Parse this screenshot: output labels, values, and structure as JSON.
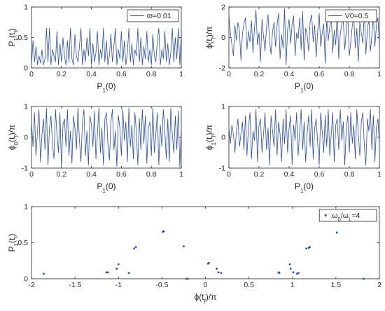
{
  "colors": {
    "series": "#2c4fa3",
    "axis": "#262626"
  },
  "chart_data": [
    {
      "type": "line",
      "xlabel": "P_1(0)",
      "ylabel": "P_1(t_f)",
      "xlim": [
        0,
        1
      ],
      "ylim": [
        0,
        1
      ],
      "xticks": [
        "0",
        "0.2",
        "0.4",
        "0.6",
        "0.8",
        "1"
      ],
      "yticks": [
        "0",
        "0.5",
        "1"
      ],
      "legend": {
        "position": "top-right",
        "entries": [
          "ϖ=0.01"
        ]
      },
      "series": [
        {
          "name": "ϖ=0.01",
          "x": [
            0,
            0.01,
            0.02,
            0.03,
            0.04,
            0.05,
            0.06,
            0.07,
            0.08,
            0.09,
            0.1,
            0.11,
            0.12,
            0.13,
            0.14,
            0.15,
            0.16,
            0.17,
            0.18,
            0.19,
            0.2,
            0.21,
            0.22,
            0.23,
            0.24,
            0.25,
            0.26,
            0.27,
            0.28,
            0.29,
            0.3,
            0.31,
            0.32,
            0.33,
            0.34,
            0.35,
            0.36,
            0.37,
            0.38,
            0.39,
            0.4,
            0.41,
            0.42,
            0.43,
            0.44,
            0.45,
            0.46,
            0.47,
            0.48,
            0.49,
            0.5,
            0.51,
            0.52,
            0.53,
            0.54,
            0.55,
            0.56,
            0.57,
            0.58,
            0.59,
            0.6,
            0.61,
            0.62,
            0.63,
            0.64,
            0.65,
            0.66,
            0.67,
            0.68,
            0.69,
            0.7,
            0.71,
            0.72,
            0.73,
            0.74,
            0.75,
            0.76,
            0.77,
            0.78,
            0.79,
            0.8,
            0.81,
            0.82,
            0.83,
            0.84,
            0.85,
            0.86,
            0.87,
            0.88,
            0.89,
            0.9,
            0.91,
            0.92,
            0.93,
            0.94,
            0.95,
            0.96,
            0.97,
            0.98,
            0.99,
            1
          ],
          "y": [
            0.05,
            0.45,
            0.1,
            0.35,
            0.05,
            0.2,
            0.08,
            0.3,
            0.05,
            0.15,
            0.65,
            0.1,
            0.65,
            0.05,
            0.3,
            0.2,
            0.1,
            0.6,
            0.05,
            0.4,
            0.1,
            0.5,
            0.2,
            0.05,
            0.45,
            0.1,
            0.65,
            0.15,
            0.05,
            0.55,
            0.2,
            0.1,
            0.35,
            0.65,
            0.05,
            0.3,
            0.1,
            0.5,
            0.2,
            0.65,
            0.05,
            0.4,
            0.1,
            0.25,
            0.6,
            0.05,
            0.3,
            0.15,
            0.65,
            0.1,
            0.45,
            0.05,
            0.2,
            0.55,
            0.1,
            0.35,
            0.65,
            0.05,
            0.3,
            0.15,
            0.6,
            0.1,
            0.45,
            0.05,
            0.25,
            0.65,
            0.1,
            0.4,
            0.05,
            0.3,
            0.2,
            0.65,
            0.1,
            0.5,
            0.05,
            0.35,
            0.15,
            0.6,
            0.1,
            0.3,
            0.05,
            0.55,
            0.2,
            0.1,
            0.45,
            0.65,
            0.05,
            0.3,
            0.15,
            0.6,
            0.1,
            0.4,
            0.05,
            0.25,
            0.65,
            0.1,
            0.5,
            0.15,
            0.65,
            0.05,
            0.6
          ]
        }
      ]
    },
    {
      "type": "line",
      "xlabel": "P_1(0)",
      "ylabel": "ϕ(t_f)/π",
      "xlim": [
        0,
        1
      ],
      "ylim": [
        -2,
        2
      ],
      "xticks": [
        "0",
        "0.2",
        "0.4",
        "0.6",
        "0.8",
        "1"
      ],
      "yticks": [
        "-2",
        "0",
        "2"
      ],
      "legend": {
        "position": "top-right",
        "entries": [
          "V0=0.5"
        ]
      },
      "series": [
        {
          "name": "V0=0.5",
          "x": [
            0,
            0.01,
            0.02,
            0.03,
            0.04,
            0.05,
            0.06,
            0.07,
            0.08,
            0.09,
            0.1,
            0.11,
            0.12,
            0.13,
            0.14,
            0.15,
            0.16,
            0.17,
            0.18,
            0.19,
            0.2,
            0.21,
            0.22,
            0.23,
            0.24,
            0.25,
            0.26,
            0.27,
            0.28,
            0.29,
            0.3,
            0.31,
            0.32,
            0.33,
            0.34,
            0.35,
            0.36,
            0.37,
            0.38,
            0.39,
            0.4,
            0.41,
            0.42,
            0.43,
            0.44,
            0.45,
            0.46,
            0.47,
            0.48,
            0.49,
            0.5,
            0.51,
            0.52,
            0.53,
            0.54,
            0.55,
            0.56,
            0.57,
            0.58,
            0.59,
            0.6,
            0.61,
            0.62,
            0.63,
            0.64,
            0.65,
            0.66,
            0.67,
            0.68,
            0.69,
            0.7,
            0.71,
            0.72,
            0.73,
            0.74,
            0.75,
            0.76,
            0.77,
            0.78,
            0.79,
            0.8,
            0.81,
            0.82,
            0.83,
            0.84,
            0.85,
            0.86,
            0.87,
            0.88,
            0.89,
            0.9,
            0.91,
            0.92,
            0.93,
            0.94,
            0.95,
            0.96,
            0.97,
            0.98,
            0.99,
            1
          ],
          "y": [
            1.5,
            0.3,
            -0.5,
            -1.2,
            0.8,
            -0.2,
            1.0,
            0.5,
            -1.5,
            0.2,
            0.9,
            1.3,
            -0.8,
            0.4,
            -0.3,
            1.1,
            -1.0,
            0.6,
            1.8,
            -0.5,
            0.3,
            -1.6,
            1.2,
            0.1,
            -0.9,
            0.7,
            1.5,
            -0.2,
            -1.1,
            0.4,
            1.0,
            -0.6,
            0.8,
            1.6,
            -1.4,
            0.2,
            -0.7,
            1.9,
            -1.8,
            0.5,
            1.2,
            -0.4,
            0.9,
            1.4,
            -1.2,
            0.3,
            -0.1,
            1.3,
            -0.8,
            1.7,
            -1.5,
            0.6,
            0.2,
            -0.9,
            1.1,
            1.5,
            -0.3,
            0.8,
            -1.3,
            0.4,
            1.6,
            -0.6,
            0.3,
            0.9,
            -1.7,
            1.2,
            -0.2,
            0.7,
            1.4,
            -1.0,
            0.5,
            -0.5,
            1.8,
            -1.4,
            0.2,
            0.9,
            1.1,
            -0.8,
            0.4,
            1.5,
            -1.2,
            -0.3,
            0.8,
            1.3,
            -0.7,
            0.6,
            -1.6,
            1.0,
            0.3,
            -0.4,
            1.7,
            -1.1,
            0.5,
            1.2,
            -0.9,
            0.1,
            1.4,
            -0.6,
            0.8,
            1.3,
            -0.5
          ]
        }
      ]
    },
    {
      "type": "line",
      "xlabel": "P_1(0)",
      "ylabel": "ϕ_0(t_f)/π",
      "xlim": [
        0,
        1
      ],
      "ylim": [
        -1,
        1
      ],
      "xticks": [
        "0",
        "0.2",
        "0.4",
        "0.6",
        "0.8",
        "1"
      ],
      "yticks": [
        "-1",
        "0",
        "1"
      ],
      "series": [
        {
          "x": [
            0,
            0.01,
            0.02,
            0.03,
            0.04,
            0.05,
            0.06,
            0.07,
            0.08,
            0.09,
            0.1,
            0.11,
            0.12,
            0.13,
            0.14,
            0.15,
            0.16,
            0.17,
            0.18,
            0.19,
            0.2,
            0.21,
            0.22,
            0.23,
            0.24,
            0.25,
            0.26,
            0.27,
            0.28,
            0.29,
            0.3,
            0.31,
            0.32,
            0.33,
            0.34,
            0.35,
            0.36,
            0.37,
            0.38,
            0.39,
            0.4,
            0.41,
            0.42,
            0.43,
            0.44,
            0.45,
            0.46,
            0.47,
            0.48,
            0.49,
            0.5,
            0.51,
            0.52,
            0.53,
            0.54,
            0.55,
            0.56,
            0.57,
            0.58,
            0.59,
            0.6,
            0.61,
            0.62,
            0.63,
            0.64,
            0.65,
            0.66,
            0.67,
            0.68,
            0.69,
            0.7,
            0.71,
            0.72,
            0.73,
            0.74,
            0.75,
            0.76,
            0.77,
            0.78,
            0.79,
            0.8,
            0.81,
            0.82,
            0.83,
            0.84,
            0.85,
            0.86,
            0.87,
            0.88,
            0.89,
            0.9,
            0.91,
            0.92,
            0.93,
            0.94,
            0.95,
            0.96,
            0.97,
            0.98,
            0.99,
            1
          ],
          "y": [
            0.5,
            -0.3,
            0.8,
            -0.6,
            0.2,
            0.9,
            -0.8,
            0.1,
            0.6,
            -0.4,
            0.95,
            -0.9,
            0.3,
            0.7,
            -0.2,
            -0.7,
            0.9,
            0.1,
            -0.5,
            0.8,
            -0.95,
            0.4,
            0.6,
            -0.3,
            0.9,
            -0.6,
            0.2,
            -0.85,
            0.7,
            0.3,
            -0.4,
            0.95,
            -0.1,
            -0.8,
            0.5,
            0.9,
            -0.6,
            0.2,
            -0.9,
            0.7,
            0.4,
            -0.3,
            0.85,
            -0.7,
            0.1,
            0.95,
            -0.5,
            0.3,
            -0.9,
            0.6,
            0.8,
            -0.2,
            -0.75,
            0.5,
            0.9,
            -0.4,
            0.2,
            -0.95,
            0.7,
            0.3,
            -0.6,
            0.9,
            -0.1,
            0.5,
            -0.8,
            0.95,
            -0.3,
            0.4,
            -0.7,
            0.8,
            0.2,
            -0.9,
            0.6,
            -0.4,
            0.9,
            -0.2,
            0.7,
            -0.85,
            0.3,
            0.5,
            -0.6,
            0.95,
            -0.5,
            0.1,
            0.8,
            -0.9,
            0.4,
            -0.3,
            0.9,
            0.2,
            -0.7,
            0.6,
            -0.8,
            0.95,
            0.1,
            -0.5,
            0.7,
            -0.4,
            0.85,
            -0.95,
            0.3
          ]
        }
      ]
    },
    {
      "type": "line",
      "xlabel": "P_1(0)",
      "ylabel": "ϕ_1(t_f)/π",
      "xlim": [
        0,
        1
      ],
      "ylim": [
        -1,
        1
      ],
      "xticks": [
        "0",
        "0.2",
        "0.4",
        "0.6",
        "0.8",
        "1"
      ],
      "yticks": [
        "-1",
        "0",
        "1"
      ],
      "series": [
        {
          "x": [
            0,
            0.01,
            0.02,
            0.03,
            0.04,
            0.05,
            0.06,
            0.07,
            0.08,
            0.09,
            0.1,
            0.11,
            0.12,
            0.13,
            0.14,
            0.15,
            0.16,
            0.17,
            0.18,
            0.19,
            0.2,
            0.21,
            0.22,
            0.23,
            0.24,
            0.25,
            0.26,
            0.27,
            0.28,
            0.29,
            0.3,
            0.31,
            0.32,
            0.33,
            0.34,
            0.35,
            0.36,
            0.37,
            0.38,
            0.39,
            0.4,
            0.41,
            0.42,
            0.43,
            0.44,
            0.45,
            0.46,
            0.47,
            0.48,
            0.49,
            0.5,
            0.51,
            0.52,
            0.53,
            0.54,
            0.55,
            0.56,
            0.57,
            0.58,
            0.59,
            0.6,
            0.61,
            0.62,
            0.63,
            0.64,
            0.65,
            0.66,
            0.67,
            0.68,
            0.69,
            0.7,
            0.71,
            0.72,
            0.73,
            0.74,
            0.75,
            0.76,
            0.77,
            0.78,
            0.79,
            0.8,
            0.81,
            0.82,
            0.83,
            0.84,
            0.85,
            0.86,
            0.87,
            0.88,
            0.89,
            0.9,
            0.91,
            0.92,
            0.93,
            0.94,
            0.95,
            0.96,
            0.97,
            0.98,
            0.99,
            1
          ],
          "y": [
            0.3,
            -0.2,
            0.4,
            0.1,
            -0.5,
            0.2,
            0.6,
            -0.3,
            0.1,
            0.5,
            -0.4,
            0.7,
            -0.6,
            0.3,
            0.8,
            -0.7,
            0.2,
            -0.1,
            0.9,
            -0.8,
            0.4,
            0.6,
            -0.5,
            0.1,
            0.8,
            -0.4,
            0.3,
            -0.9,
            0.7,
            0.2,
            -0.3,
            0.9,
            -0.6,
            0.5,
            0.1,
            -0.8,
            0.6,
            -0.2,
            0.9,
            -0.5,
            0.3,
            0.7,
            -0.9,
            0.4,
            -0.1,
            0.8,
            -0.6,
            0.2,
            0.9,
            -0.4,
            0.5,
            -0.8,
            0.1,
            0.7,
            -0.3,
            0.9,
            -0.7,
            0.3,
            0.6,
            -0.2,
            -0.9,
            0.8,
            0.2,
            -0.5,
            0.7,
            -0.3,
            0.9,
            -0.6,
            0.1,
            0.8,
            -0.8,
            0.4,
            0.6,
            -0.4,
            0.9,
            -0.1,
            0.5,
            -0.9,
            0.3,
            0.7,
            -0.5,
            0.8,
            -0.2,
            0.4,
            -0.7,
            0.9,
            0.1,
            -0.6,
            0.5,
            0.8,
            -0.3,
            -0.9,
            0.6,
            0.2,
            0.9,
            -0.4,
            0.7,
            -0.8,
            0.3,
            0.6,
            -0.2
          ]
        }
      ]
    },
    {
      "type": "scatter",
      "xlabel": "ϕ(t_f)/π",
      "ylabel": "P_1(t_f)",
      "xlim": [
        -2,
        2
      ],
      "ylim": [
        0,
        1
      ],
      "xticks": [
        "-2",
        "-1.5",
        "-1",
        "-0.5",
        "0",
        "0.5",
        "1",
        "1.5",
        "2"
      ],
      "yticks": [
        "0",
        "0.5",
        "1"
      ],
      "legend": {
        "position": "top-right",
        "entries": [
          "ω_0/ω_L=4"
        ]
      },
      "series": [
        {
          "name": "ω_0/ω_L=4",
          "x": [
            -1.86,
            -1.14,
            -1.12,
            -1.02,
            -1.0,
            -0.88,
            -0.82,
            -0.8,
            -0.49,
            -0.48,
            -0.25,
            -0.22,
            -0.2,
            0.03,
            0.04,
            0.13,
            0.15,
            0.18,
            0.84,
            0.85,
            0.97,
            0.98,
            1.01,
            1.05,
            1.07,
            1.16,
            1.19,
            1.2,
            1.51,
            1.82
          ],
          "y": [
            0.07,
            0.09,
            0.09,
            0.14,
            0.2,
            0.08,
            0.42,
            0.44,
            0.65,
            0.66,
            0.45,
            0.0,
            0.0,
            0.21,
            0.22,
            0.14,
            0.09,
            0.08,
            0.09,
            0.08,
            0.2,
            0.14,
            0.09,
            0.07,
            0.08,
            0.42,
            0.43,
            0.44,
            0.64,
            0.0
          ]
        }
      ]
    }
  ]
}
